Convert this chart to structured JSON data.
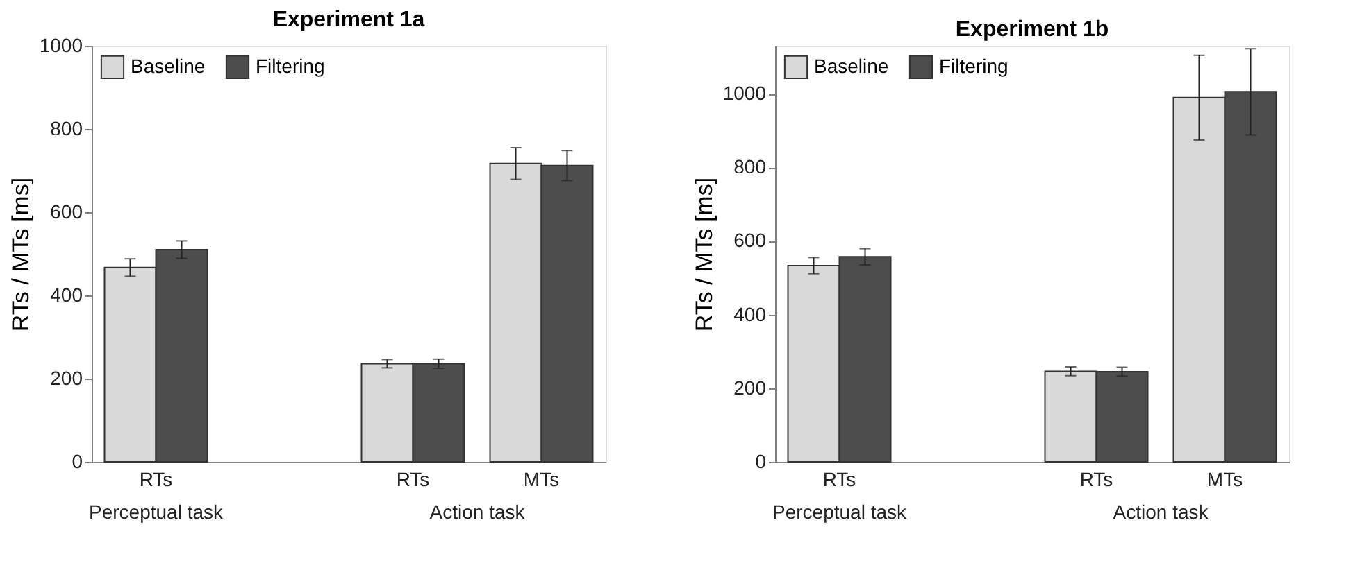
{
  "chart_data": [
    {
      "type": "bar",
      "title": "Experiment 1a",
      "ylabel": "RTs / MTs [ms]",
      "categories": [
        "RTs",
        null,
        "RTs",
        "MTs"
      ],
      "series": [
        {
          "name": "Baseline",
          "color": "#d9d9d9",
          "values": [
            467,
            null,
            236,
            717
          ],
          "errors": [
            21,
            null,
            10,
            38
          ]
        },
        {
          "name": "Filtering",
          "color": "#4d4d4d",
          "values": [
            510,
            null,
            236,
            712
          ],
          "errors": [
            21,
            null,
            11,
            36
          ]
        }
      ],
      "ylim": [
        0,
        1000
      ],
      "yticks": [
        0,
        200,
        400,
        600,
        800,
        1000
      ],
      "grid": false,
      "legend": "top left",
      "annotations": [
        "Perceptual task",
        "Action task"
      ]
    },
    {
      "type": "bar",
      "title": "Experiment 1b",
      "ylabel": "RTs / MTs [ms]",
      "categories": [
        "RTs",
        null,
        "RTs",
        "MTs"
      ],
      "series": [
        {
          "name": "Baseline",
          "color": "#d9d9d9",
          "values": [
            533,
            null,
            246,
            989
          ],
          "errors": [
            22,
            null,
            12,
            115
          ]
        },
        {
          "name": "Filtering",
          "color": "#4d4d4d",
          "values": [
            557,
            null,
            245,
            1005
          ],
          "errors": [
            22,
            null,
            12,
            117
          ]
        }
      ],
      "ylim": [
        0,
        1130
      ],
      "yticks": [
        0,
        200,
        400,
        600,
        800,
        1000
      ],
      "grid": false,
      "legend": "top left",
      "annotations": [
        "Perceptual task",
        "Action task"
      ]
    }
  ]
}
